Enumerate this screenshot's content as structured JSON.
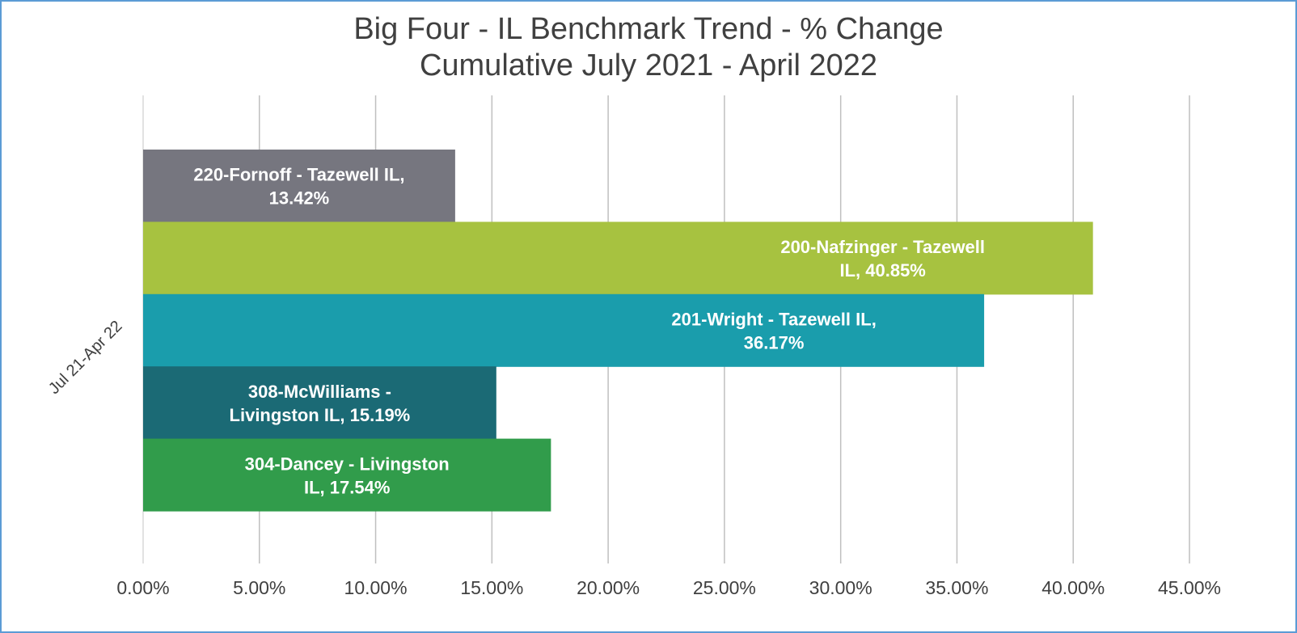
{
  "chart_data": {
    "type": "bar",
    "orientation": "horizontal",
    "title": "Big Four - IL Benchmark Trend - % Change",
    "subtitle": "Cumulative July 2021 - April 2022",
    "categories": [
      "Jul 21-Apr 22"
    ],
    "xlim": [
      0,
      45
    ],
    "x_ticks": [
      "0.00%",
      "5.00%",
      "10.00%",
      "15.00%",
      "20.00%",
      "25.00%",
      "30.00%",
      "35.00%",
      "40.00%",
      "45.00%"
    ],
    "grid": "vertical",
    "legend": "none",
    "series": [
      {
        "name": "220-Fornoff - Tazewell IL",
        "values": [
          13.42
        ],
        "label_lines": [
          "220-Fornoff - Tazewell IL,",
          "13.42%"
        ],
        "color": "#76767f"
      },
      {
        "name": "200-Nafzinger - Tazewell IL",
        "values": [
          40.85
        ],
        "label_lines": [
          "200-Nafzinger - Tazewell",
          "IL, 40.85%"
        ],
        "color": "#a7c240"
      },
      {
        "name": "201-Wright - Tazewell IL",
        "values": [
          36.17
        ],
        "label_lines": [
          "201-Wright - Tazewell IL,",
          "36.17%"
        ],
        "color": "#1a9dac"
      },
      {
        "name": "308-McWilliams - Livingston IL",
        "values": [
          15.19
        ],
        "label_lines": [
          "308-McWilliams -",
          "Livingston IL, 15.19%"
        ],
        "color": "#1b6a75"
      },
      {
        "name": "304-Dancey - Livingston IL",
        "values": [
          17.54
        ],
        "label_lines": [
          "304-Dancey - Livingston",
          "IL, 17.54%"
        ],
        "color": "#319c4b"
      }
    ]
  }
}
